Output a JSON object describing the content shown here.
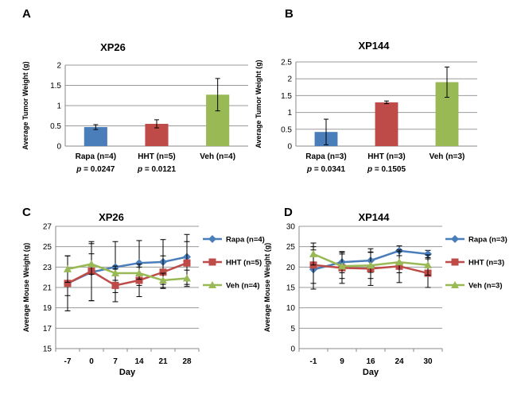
{
  "panels": [
    {
      "letter": "A",
      "chart": {
        "type": "bar",
        "title": "XP26",
        "ylabel": "Average Tumor Weight (g)",
        "xlabel": "",
        "ylim": [
          0,
          2
        ],
        "yticks": [
          0,
          0.5,
          1,
          1.5,
          2
        ],
        "ytick_labels": [
          "0",
          "0.5",
          "1",
          "1.5",
          "2"
        ],
        "categories": [
          "Rapa (n=4)",
          "HHT (n=5)",
          "Veh (n=4)"
        ],
        "values": [
          0.47,
          0.55,
          1.27
        ],
        "errors": [
          0.06,
          0.1,
          0.4
        ],
        "colors": [
          "#4a7ebb",
          "#be4b48",
          "#98b954"
        ],
        "pvalues": [
          {
            "prefix": "p",
            "rest": " = 0.0247"
          },
          {
            "prefix": "p",
            "rest": " = 0.0121"
          },
          {
            "prefix": "",
            "rest": ""
          }
        ]
      }
    },
    {
      "letter": "B",
      "chart": {
        "type": "bar",
        "title": "XP144",
        "ylabel": "Average Tumor Weight (g)",
        "xlabel": "",
        "ylim": [
          0,
          2.5
        ],
        "yticks": [
          0,
          0.5,
          1,
          1.5,
          2,
          2.5
        ],
        "ytick_labels": [
          "0",
          "0.5",
          "1",
          "1.5",
          "2",
          "2.5"
        ],
        "categories": [
          "Rapa (n=3)",
          "HHT (n=3)",
          "Veh (n=3)"
        ],
        "values": [
          0.42,
          1.3,
          1.9
        ],
        "errors": [
          0.38,
          0.04,
          0.45
        ],
        "colors": [
          "#4a7ebb",
          "#be4b48",
          "#98b954"
        ],
        "pvalues": [
          {
            "prefix": "p",
            "rest": " = 0.0341"
          },
          {
            "prefix": "p",
            "rest": " = 0.1505"
          },
          {
            "prefix": "",
            "rest": ""
          }
        ]
      }
    },
    {
      "letter": "C",
      "chart": {
        "type": "line",
        "title": "XP26",
        "ylabel": "Average Mouse Weight (g)",
        "xlabel": "Day",
        "ylim": [
          15,
          27
        ],
        "yticks": [
          15,
          17,
          19,
          21,
          23,
          25,
          27
        ],
        "ytick_labels": [
          "15",
          "17",
          "19",
          "21",
          "23",
          "25",
          "27"
        ],
        "x": [
          "-7",
          "0",
          "7",
          "14",
          "21",
          "28"
        ],
        "series": [
          {
            "name": "Rapa (n=4)",
            "color": "#4a7ebb",
            "marker": "diamond",
            "values": [
              21.4,
              22.5,
              23.0,
              23.4,
              23.5,
              24.0
            ],
            "errors": [
              2.7,
              2.8,
              2.5,
              2.2,
              2.2,
              2.2
            ]
          },
          {
            "name": "HHT (n=5)",
            "color": "#be4b48",
            "marker": "square",
            "values": [
              21.4,
              22.6,
              21.2,
              21.7,
              22.5,
              23.4
            ],
            "errors": [
              1.2,
              2.9,
              1.6,
              1.6,
              1.6,
              2.1
            ]
          },
          {
            "name": "Veh (n=4)",
            "color": "#98b954",
            "marker": "triangle",
            "values": [
              22.8,
              23.3,
              22.4,
              22.4,
              21.7,
              21.9
            ],
            "errors": [
              1.3,
              1.0,
              0.7,
              0.6,
              0.7,
              0.8
            ]
          }
        ]
      }
    },
    {
      "letter": "D",
      "chart": {
        "type": "line",
        "title": "XP144",
        "ylabel": "Average Mouse Weight (g)",
        "xlabel": "Day",
        "ylim": [
          0,
          30
        ],
        "yticks": [
          0,
          5,
          10,
          15,
          20,
          25,
          30
        ],
        "ytick_labels": [
          "0",
          "5",
          "10",
          "15",
          "20",
          "25",
          "30"
        ],
        "x": [
          "-1",
          "9",
          "16",
          "24",
          "30"
        ],
        "series": [
          {
            "name": "Rapa (n=3)",
            "color": "#4a7ebb",
            "marker": "diamond",
            "values": [
              19.4,
              21.2,
              21.6,
              24.0,
              23.2
            ],
            "errors": [
              4.8,
              2.6,
              2.9,
              1.2,
              0.9
            ]
          },
          {
            "name": "HHT (n=3)",
            "color": "#be4b48",
            "marker": "square",
            "values": [
              20.5,
              19.8,
              19.6,
              20.2,
              18.5
            ],
            "errors": [
              4.5,
              3.8,
              4.1,
              4.0,
              3.5
            ]
          },
          {
            "name": "Veh (n=3)",
            "color": "#98b954",
            "marker": "triangle",
            "values": [
              23.2,
              20.2,
              20.4,
              21.2,
              20.5
            ],
            "errors": [
              2.7,
              3.0,
              3.2,
              2.6,
              2.5
            ]
          }
        ]
      }
    }
  ]
}
